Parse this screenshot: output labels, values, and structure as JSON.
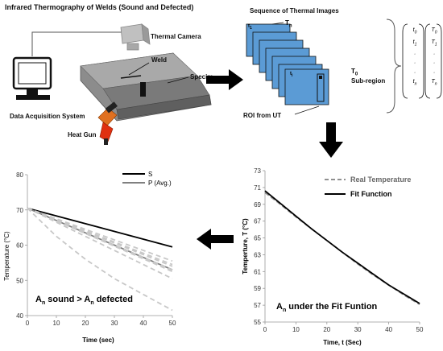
{
  "setup": {
    "title": "Infrared Thermography of Welds (Sound and Defected)",
    "thermal_camera": "Thermal Camera",
    "weld": "Weld",
    "specimen": "Specim",
    "daq": "Data Acquisition System",
    "heat_gun": "Heat Gun"
  },
  "sequence": {
    "title": "Sequence of Thermal Images",
    "t1": "t",
    "t1_sub": "1",
    "tn": "T",
    "tn_sub": "n",
    "tmid": "t",
    "tmid_sub": "i",
    "t0": "T",
    "t0_sub": "0",
    "subregion": "Sub-region",
    "roi": "ROI from UT",
    "frame_color": "#5b9bd5"
  },
  "matrix": {
    "left": [
      "t",
      "t",
      "·",
      "·",
      "·",
      "t"
    ],
    "left_sub": [
      "0",
      "1",
      "",
      "",
      "",
      "n"
    ],
    "right": [
      "T",
      "T",
      "·",
      "·",
      "·",
      "T"
    ],
    "right_sub": [
      "0",
      "1",
      "",
      "",
      "",
      "n"
    ]
  },
  "chart_data": [
    {
      "type": "line",
      "title": "",
      "xlabel": "Time (sec)",
      "ylabel": "Temperature (°C)",
      "xlim": [
        0,
        50
      ],
      "ylim": [
        40,
        80
      ],
      "xticks": [
        "0",
        "10",
        "20",
        "30",
        "40",
        "50"
      ],
      "yticks": [
        "40",
        "50",
        "60",
        "70",
        "80"
      ],
      "legend": [
        "S",
        "P (Avg.)"
      ],
      "legend_position": "top-right",
      "annotation": "A",
      "annotation_sub": "n",
      "annotation_mid": " sound > A",
      "annotation_sub2": "n",
      "annotation_end": " defected",
      "series": [
        {
          "name": "S",
          "x": [
            0,
            50
          ],
          "y": [
            70.5,
            59.5
          ],
          "color": "#000000",
          "style": "solid"
        },
        {
          "name": "P (Avg.)",
          "x": [
            0,
            50
          ],
          "y": [
            70.5,
            53.0
          ],
          "color": "#808080",
          "style": "solid"
        },
        {
          "x": [
            0,
            50
          ],
          "y": [
            70.5,
            55.5
          ],
          "color": "#c8c8c8",
          "style": "dashed"
        },
        {
          "x": [
            0,
            50
          ],
          "y": [
            70.5,
            54.5
          ],
          "color": "#c8c8c8",
          "style": "dashed"
        },
        {
          "x": [
            0,
            50
          ],
          "y": [
            70.5,
            54.0
          ],
          "color": "#c8c8c8",
          "style": "dashed"
        },
        {
          "x": [
            0,
            50
          ],
          "y": [
            70.5,
            53.0
          ],
          "color": "#c8c8c8",
          "style": "dashed"
        },
        {
          "x": [
            0,
            50
          ],
          "y": [
            70.5,
            52.5
          ],
          "color": "#c8c8c8",
          "style": "dashed"
        },
        {
          "x": [
            0,
            50
          ],
          "y": [
            70.5,
            50.5
          ],
          "color": "#c8c8c8",
          "style": "dashed"
        },
        {
          "x": [
            0,
            5,
            10,
            20,
            30,
            40,
            50
          ],
          "y": [
            70.5,
            66.5,
            62.5,
            56.0,
            50.5,
            46.0,
            41.5
          ],
          "color": "#c8c8c8",
          "style": "dashed"
        }
      ]
    },
    {
      "type": "line",
      "title": "",
      "xlabel": "Time, t (Sec)",
      "ylabel": "Temperture, T (°C)",
      "xlim": [
        0,
        50
      ],
      "ylim": [
        55,
        73
      ],
      "xticks": [
        "0",
        "10",
        "20",
        "30",
        "40",
        "50"
      ],
      "yticks": [
        "55",
        "57",
        "59",
        "61",
        "63",
        "65",
        "67",
        "69",
        "71",
        "73"
      ],
      "legend": [
        "Real Temperature",
        "Fit Function"
      ],
      "legend_position": "top-right",
      "annotation": "A",
      "annotation_sub": "n",
      "annotation_end": " under the Fit Funtion",
      "series": [
        {
          "name": "Real Temperature",
          "x": [
            0,
            5,
            10,
            15,
            20,
            25,
            30,
            35,
            40,
            45,
            50
          ],
          "y": [
            70.4,
            69.0,
            67.5,
            66.1,
            64.7,
            63.3,
            61.9,
            60.6,
            59.4,
            58.2,
            57.1
          ],
          "color": "#909090",
          "style": "dashed"
        },
        {
          "name": "Fit Function",
          "x": [
            0,
            5,
            10,
            15,
            20,
            25,
            30,
            35,
            40,
            45,
            50
          ],
          "y": [
            70.6,
            69.1,
            67.6,
            66.1,
            64.7,
            63.3,
            62.0,
            60.7,
            59.4,
            58.3,
            57.2
          ],
          "color": "#000000",
          "style": "solid"
        }
      ]
    }
  ]
}
